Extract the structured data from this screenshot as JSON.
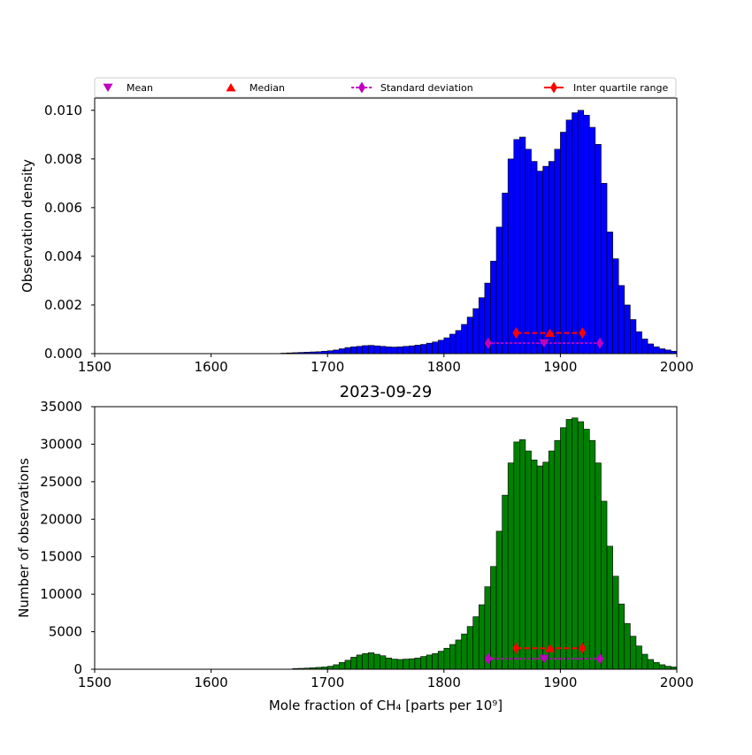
{
  "colors": {
    "top_bars": "#0000ff",
    "bottom_bars": "#008000",
    "mean_marker": "#bf00bf",
    "median_marker": "#ff0000",
    "std_color": "#bf00bf",
    "iqr_color": "#ff0000"
  },
  "legend": {
    "placement": "top, above upper panel",
    "entries": [
      "Mean",
      "Median",
      "Standard deviation",
      "Inter quartile range"
    ]
  },
  "chart_data": [
    {
      "type": "bar",
      "title": "",
      "xlabel": "",
      "ylabel": "Observation density",
      "xlim": [
        1500,
        2000
      ],
      "ylim": [
        0,
        0.0105
      ],
      "x_ticks": [
        "1500",
        "1600",
        "1700",
        "1800",
        "1900",
        "2000"
      ],
      "y_ticks": [
        "0.000",
        "0.002",
        "0.004",
        "0.006",
        "0.008",
        "0.010"
      ],
      "bin_width": 5,
      "bin_starts": [
        1660,
        1665,
        1670,
        1675,
        1680,
        1685,
        1690,
        1695,
        1700,
        1705,
        1710,
        1715,
        1720,
        1725,
        1730,
        1735,
        1740,
        1745,
        1750,
        1755,
        1760,
        1765,
        1770,
        1775,
        1780,
        1785,
        1790,
        1795,
        1800,
        1805,
        1810,
        1815,
        1820,
        1825,
        1830,
        1835,
        1840,
        1845,
        1850,
        1855,
        1860,
        1865,
        1870,
        1875,
        1880,
        1885,
        1890,
        1895,
        1900,
        1905,
        1910,
        1915,
        1920,
        1925,
        1930,
        1935,
        1940,
        1945,
        1950,
        1955,
        1960,
        1965,
        1970,
        1975,
        1980,
        1985,
        1990,
        1995
      ],
      "values": [
        2e-05,
        3e-05,
        4e-05,
        5e-05,
        6e-05,
        7e-05,
        8e-05,
        0.0001,
        0.00012,
        0.00015,
        0.0002,
        0.00025,
        0.00028,
        0.0003,
        0.00033,
        0.00034,
        0.00032,
        0.0003,
        0.00028,
        0.00027,
        0.00028,
        0.0003,
        0.00032,
        0.00035,
        0.00038,
        0.00043,
        0.00048,
        0.00055,
        0.00065,
        0.0008,
        0.00095,
        0.0012,
        0.0015,
        0.00185,
        0.0023,
        0.0029,
        0.0038,
        0.0052,
        0.0066,
        0.008,
        0.0088,
        0.0089,
        0.0084,
        0.0079,
        0.0075,
        0.0077,
        0.0079,
        0.0084,
        0.0091,
        0.0096,
        0.0099,
        0.01,
        0.0098,
        0.0093,
        0.0086,
        0.007,
        0.005,
        0.0039,
        0.0028,
        0.002,
        0.0014,
        0.0009,
        0.0006,
        0.0004,
        0.00028,
        0.0002,
        0.00015,
        0.0001
      ],
      "stats": {
        "mean": 1886,
        "median": 1891,
        "std_range": [
          1838,
          1934
        ],
        "iqr_range": [
          1862,
          1919
        ],
        "std_marker_y": 0.00043,
        "iqr_marker_y": 0.00085
      }
    },
    {
      "type": "bar",
      "title": "2023-09-29",
      "xlabel": "Mole fraction of CH₄ [parts per 10⁹]",
      "ylabel": "Number of observations",
      "xlim": [
        1500,
        2000
      ],
      "ylim": [
        0,
        35000
      ],
      "x_ticks": [
        "1500",
        "1600",
        "1700",
        "1800",
        "1900",
        "2000"
      ],
      "y_ticks": [
        "0",
        "5000",
        "10000",
        "15000",
        "20000",
        "25000",
        "30000",
        "35000"
      ],
      "bin_width": 5,
      "bin_starts": [
        1670,
        1675,
        1680,
        1685,
        1690,
        1695,
        1700,
        1705,
        1710,
        1715,
        1720,
        1725,
        1730,
        1735,
        1740,
        1745,
        1750,
        1755,
        1760,
        1765,
        1770,
        1775,
        1780,
        1785,
        1790,
        1795,
        1800,
        1805,
        1810,
        1815,
        1820,
        1825,
        1830,
        1835,
        1840,
        1845,
        1850,
        1855,
        1860,
        1865,
        1870,
        1875,
        1880,
        1885,
        1890,
        1895,
        1900,
        1905,
        1910,
        1915,
        1920,
        1925,
        1930,
        1935,
        1940,
        1945,
        1950,
        1955,
        1960,
        1965,
        1970,
        1975,
        1980,
        1985,
        1990,
        1995
      ],
      "values": [
        100,
        120,
        150,
        200,
        250,
        300,
        400,
        600,
        900,
        1200,
        1600,
        1900,
        2100,
        2200,
        2000,
        1800,
        1500,
        1350,
        1300,
        1350,
        1400,
        1500,
        1700,
        1900,
        2100,
        2400,
        2800,
        3300,
        3900,
        4700,
        5700,
        7000,
        8600,
        11000,
        13700,
        18400,
        23200,
        27500,
        30300,
        30600,
        29100,
        27900,
        27100,
        27600,
        29100,
        30500,
        32200,
        33300,
        33500,
        33000,
        32000,
        30500,
        27500,
        22400,
        16400,
        12400,
        8700,
        6100,
        4400,
        3100,
        2000,
        1300,
        900,
        600,
        400,
        300
      ],
      "stats": {
        "mean": 1886,
        "median": 1891,
        "std_range": [
          1838,
          1934
        ],
        "iqr_range": [
          1862,
          1919
        ],
        "std_marker_y": 1400,
        "iqr_marker_y": 2800
      }
    }
  ]
}
